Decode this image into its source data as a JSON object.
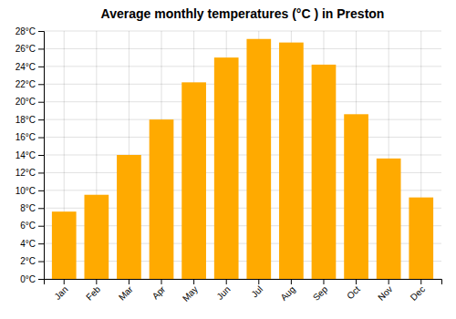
{
  "chart_data": {
    "type": "bar",
    "title": "Average monthly temperatures (°C ) in Preston",
    "categories": [
      "Jan",
      "Feb",
      "Mar",
      "Apr",
      "May",
      "Jun",
      "Jul",
      "Aug",
      "Sep",
      "Oct",
      "Nov",
      "Dec"
    ],
    "values": [
      7.6,
      9.5,
      14.0,
      18.0,
      22.2,
      25.0,
      27.1,
      26.7,
      24.2,
      18.6,
      13.6,
      9.2
    ],
    "color": "#FFAA00",
    "ylim": [
      0,
      28
    ],
    "yticks": [
      {
        "value": 0,
        "label": "0°C"
      },
      {
        "value": 2,
        "label": "2°C"
      },
      {
        "value": 4,
        "label": "4°C"
      },
      {
        "value": 6,
        "label": "6°C"
      },
      {
        "value": 8,
        "label": "8°C"
      },
      {
        "value": 10,
        "label": "10°C"
      },
      {
        "value": 12,
        "label": "12°C"
      },
      {
        "value": 14,
        "label": "14°C"
      },
      {
        "value": 16,
        "label": "16°C"
      },
      {
        "value": 18,
        "label": "18°C"
      },
      {
        "value": 20,
        "label": "20°C"
      },
      {
        "value": 22,
        "label": "22°C"
      },
      {
        "value": 24,
        "label": "24°C"
      },
      {
        "value": 26,
        "label": "26°C"
      },
      {
        "value": 28,
        "label": "28°C"
      }
    ],
    "grid": true
  }
}
